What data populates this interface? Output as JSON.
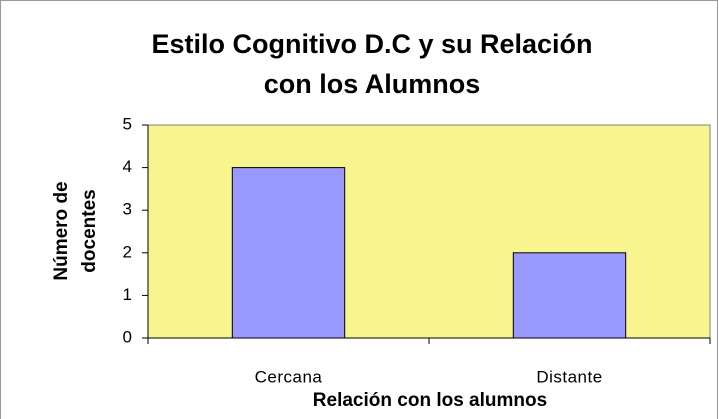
{
  "chart_data": {
    "type": "bar",
    "title": [
      "Estilo Cognitivo D.C y su Relación",
      "con los Alumnos"
    ],
    "y_label": [
      "Número de",
      "docentes"
    ],
    "x_label": "Relación con los alumnos",
    "categories": [
      "Cercana",
      "Distante"
    ],
    "values": [
      4,
      2
    ],
    "color": "#9999ff",
    "plot_background": "#f8f48e",
    "ylim": [
      0,
      5
    ],
    "yticks": [
      0,
      1,
      2,
      3,
      4,
      5
    ],
    "grid": false
  }
}
